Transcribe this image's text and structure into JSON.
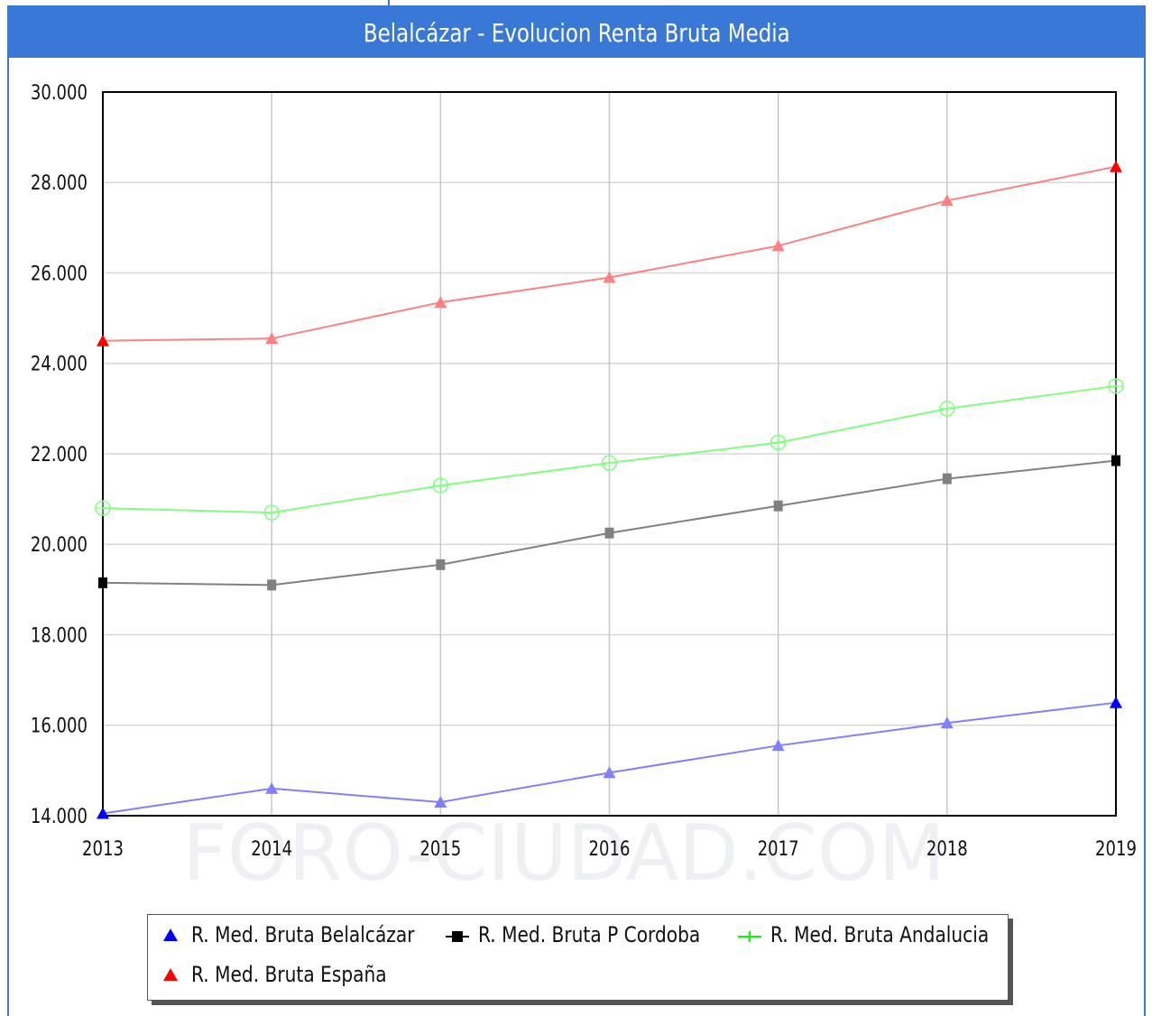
{
  "title": "Belalcázar - Evolucion Renta Bruta Media",
  "watermark": "FORO-CIUDAD.COM",
  "chart_data": {
    "type": "line",
    "title": "Belalcázar - Evolucion Renta Bruta Media",
    "xlabel": "",
    "ylabel": "",
    "x": [
      "2013",
      "2014",
      "2015",
      "2016",
      "2017",
      "2018",
      "2019"
    ],
    "ylim": [
      14000,
      30000
    ],
    "yticks": [
      "14.000",
      "16.000",
      "18.000",
      "20.000",
      "22.000",
      "24.000",
      "26.000",
      "28.000",
      "30.000"
    ],
    "grid": true,
    "legend_position": "bottom",
    "series": [
      {
        "name": "R. Med. Bruta Belalcázar",
        "color": "#8080ff",
        "marker_color": "#0000ff",
        "marker": "triangle",
        "values": [
          14050,
          14600,
          14300,
          14950,
          15550,
          16050,
          16500
        ]
      },
      {
        "name": "R. Med. Bruta P Cordoba",
        "color": "#808080",
        "marker_color": "#000000",
        "marker": "square",
        "values": [
          19150,
          19100,
          19550,
          20250,
          20850,
          21450,
          21850
        ]
      },
      {
        "name": "R. Med. Bruta Andalucia",
        "color": "#80ff80",
        "marker_color": "#00ff00",
        "marker": "diamond",
        "values": [
          20800,
          20700,
          21300,
          21800,
          22250,
          23000,
          23500
        ]
      },
      {
        "name": "R. Med. Bruta España",
        "color": "#ff8080",
        "marker_color": "#ff0000",
        "marker": "triangle",
        "values": [
          24500,
          24550,
          25350,
          25900,
          26600,
          27600,
          28350
        ]
      }
    ]
  }
}
